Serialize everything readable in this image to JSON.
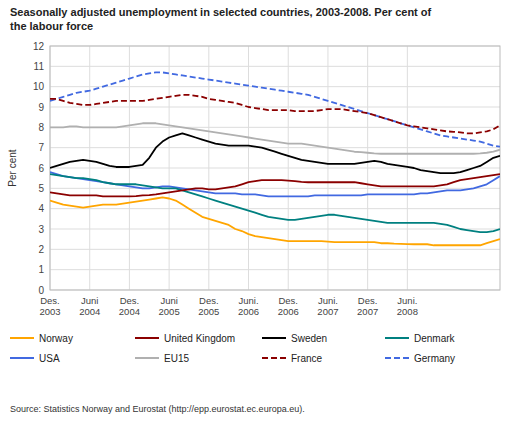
{
  "chart_data": {
    "type": "line",
    "title": "Seasonally adjusted unemployment in selected countries, 2003-2008. Per cent of\nthe labour force",
    "ylabel": "Per cent",
    "source": "Source: Statistics Norway and Eurostat (http://epp.eurostat.ec.europa.eu).",
    "categories": [
      "Des.\n2003",
      null,
      null,
      null,
      null,
      null,
      "Juni\n2004",
      null,
      null,
      null,
      null,
      null,
      "Des.\n2004",
      null,
      null,
      null,
      null,
      null,
      "Juni\n2005",
      null,
      null,
      null,
      null,
      null,
      "Des.\n2005",
      null,
      null,
      null,
      null,
      null,
      "Juni.\n2006",
      null,
      null,
      null,
      null,
      null,
      "Des.\n2006",
      null,
      null,
      null,
      null,
      null,
      "Juni.\n2007",
      null,
      null,
      null,
      null,
      null,
      "Des.\n2007",
      null,
      null,
      null,
      null,
      null,
      "Juni.\n2008",
      null,
      null,
      null,
      null,
      null,
      null,
      null,
      null,
      null,
      null,
      null,
      null,
      null,
      null
    ],
    "ylim": [
      0,
      12
    ],
    "yticks": [
      0,
      1,
      2,
      3,
      4,
      5,
      6,
      7,
      8,
      9,
      10,
      11,
      12
    ],
    "grid": true,
    "legend": "bottom",
    "series": [
      {
        "name": "Norway",
        "color": "#FFA500",
        "line_style": "solid",
        "values": [
          4.4,
          4.3,
          4.2,
          4.15,
          4.1,
          4.05,
          4.1,
          4.15,
          4.2,
          4.2,
          4.2,
          4.25,
          4.3,
          4.35,
          4.4,
          4.45,
          4.5,
          4.55,
          4.5,
          4.4,
          4.2,
          4.0,
          3.8,
          3.6,
          3.5,
          3.4,
          3.3,
          3.2,
          3.0,
          2.9,
          2.75,
          2.65,
          2.6,
          2.55,
          2.5,
          2.45,
          2.4,
          2.4,
          2.4,
          2.4,
          2.4,
          2.4,
          2.38,
          2.35,
          2.35,
          2.35,
          2.35,
          2.35,
          2.35,
          2.35,
          2.3,
          2.3,
          2.28,
          2.27,
          2.26,
          2.25,
          2.25,
          2.25,
          2.2,
          2.2,
          2.2,
          2.2,
          2.2,
          2.2,
          2.2,
          2.2,
          2.3,
          2.4,
          2.5
        ]
      },
      {
        "name": "United Kingdom",
        "color": "#8B0000",
        "line_style": "solid",
        "values": [
          4.8,
          4.75,
          4.7,
          4.65,
          4.65,
          4.65,
          4.65,
          4.65,
          4.6,
          4.6,
          4.6,
          4.6,
          4.6,
          4.62,
          4.65,
          4.67,
          4.7,
          4.75,
          4.8,
          4.85,
          4.9,
          4.95,
          5.0,
          5.0,
          4.95,
          4.95,
          5.0,
          5.05,
          5.1,
          5.2,
          5.3,
          5.35,
          5.4,
          5.4,
          5.4,
          5.4,
          5.38,
          5.35,
          5.32,
          5.3,
          5.3,
          5.3,
          5.3,
          5.3,
          5.3,
          5.3,
          5.3,
          5.25,
          5.2,
          5.15,
          5.1,
          5.1,
          5.1,
          5.1,
          5.1,
          5.1,
          5.1,
          5.1,
          5.1,
          5.15,
          5.2,
          5.3,
          5.4,
          5.45,
          5.5,
          5.55,
          5.6,
          5.65,
          5.7
        ]
      },
      {
        "name": "Sweden",
        "color": "#000000",
        "line_style": "solid",
        "values": [
          6.0,
          6.1,
          6.2,
          6.3,
          6.35,
          6.4,
          6.35,
          6.3,
          6.2,
          6.1,
          6.05,
          6.05,
          6.05,
          6.1,
          6.15,
          6.5,
          7.0,
          7.3,
          7.5,
          7.6,
          7.7,
          7.6,
          7.5,
          7.4,
          7.3,
          7.2,
          7.15,
          7.1,
          7.1,
          7.1,
          7.1,
          7.05,
          7.0,
          6.9,
          6.8,
          6.7,
          6.6,
          6.5,
          6.4,
          6.35,
          6.3,
          6.25,
          6.2,
          6.2,
          6.2,
          6.2,
          6.2,
          6.25,
          6.3,
          6.35,
          6.3,
          6.2,
          6.15,
          6.1,
          6.05,
          6.0,
          5.9,
          5.85,
          5.8,
          5.75,
          5.75,
          5.75,
          5.8,
          5.9,
          6.0,
          6.1,
          6.3,
          6.5,
          6.6
        ]
      },
      {
        "name": "Denmark",
        "color": "#008080",
        "line_style": "solid",
        "values": [
          5.7,
          5.65,
          5.6,
          5.55,
          5.5,
          5.5,
          5.45,
          5.4,
          5.3,
          5.25,
          5.2,
          5.2,
          5.2,
          5.2,
          5.15,
          5.1,
          5.05,
          5.0,
          5.0,
          5.0,
          4.9,
          4.8,
          4.7,
          4.6,
          4.5,
          4.4,
          4.3,
          4.2,
          4.1,
          4.0,
          3.9,
          3.8,
          3.7,
          3.6,
          3.55,
          3.5,
          3.45,
          3.45,
          3.5,
          3.55,
          3.6,
          3.65,
          3.7,
          3.7,
          3.65,
          3.6,
          3.55,
          3.5,
          3.45,
          3.4,
          3.35,
          3.3,
          3.3,
          3.3,
          3.3,
          3.3,
          3.3,
          3.3,
          3.3,
          3.25,
          3.2,
          3.1,
          3.0,
          2.95,
          2.9,
          2.85,
          2.85,
          2.9,
          3.0
        ]
      },
      {
        "name": "USA",
        "color": "#4169E1",
        "line_style": "solid",
        "values": [
          5.8,
          5.7,
          5.6,
          5.55,
          5.5,
          5.45,
          5.4,
          5.35,
          5.3,
          5.25,
          5.2,
          5.15,
          5.1,
          5.05,
          5.0,
          5.0,
          5.05,
          5.1,
          5.1,
          5.05,
          5.0,
          4.95,
          4.9,
          4.85,
          4.8,
          4.75,
          4.75,
          4.75,
          4.75,
          4.7,
          4.7,
          4.7,
          4.65,
          4.6,
          4.6,
          4.6,
          4.6,
          4.6,
          4.6,
          4.6,
          4.65,
          4.65,
          4.65,
          4.65,
          4.65,
          4.65,
          4.65,
          4.65,
          4.7,
          4.7,
          4.7,
          4.7,
          4.7,
          4.7,
          4.7,
          4.7,
          4.75,
          4.75,
          4.8,
          4.85,
          4.9,
          4.9,
          4.9,
          4.95,
          5.0,
          5.1,
          5.2,
          5.4,
          5.6
        ]
      },
      {
        "name": "EU15",
        "color": "#B0B0B0",
        "line_style": "solid",
        "values": [
          8.0,
          8.0,
          8.0,
          8.05,
          8.05,
          8.0,
          8.0,
          8.0,
          8.0,
          8.0,
          8.0,
          8.05,
          8.1,
          8.15,
          8.2,
          8.2,
          8.2,
          8.15,
          8.1,
          8.05,
          8.0,
          7.95,
          7.9,
          7.85,
          7.8,
          7.75,
          7.7,
          7.65,
          7.6,
          7.55,
          7.5,
          7.45,
          7.4,
          7.35,
          7.3,
          7.25,
          7.2,
          7.2,
          7.2,
          7.15,
          7.1,
          7.05,
          7.0,
          6.95,
          6.9,
          6.85,
          6.8,
          6.78,
          6.75,
          6.72,
          6.7,
          6.7,
          6.7,
          6.7,
          6.7,
          6.7,
          6.7,
          6.7,
          6.7,
          6.7,
          6.7,
          6.7,
          6.7,
          6.7,
          6.7,
          6.72,
          6.75,
          6.8,
          6.9
        ]
      },
      {
        "name": "France",
        "color": "#8B0000",
        "line_style": "dashed",
        "values": [
          9.4,
          9.4,
          9.3,
          9.2,
          9.15,
          9.1,
          9.1,
          9.15,
          9.2,
          9.25,
          9.3,
          9.3,
          9.3,
          9.3,
          9.3,
          9.35,
          9.4,
          9.45,
          9.5,
          9.55,
          9.6,
          9.6,
          9.55,
          9.5,
          9.4,
          9.35,
          9.3,
          9.25,
          9.2,
          9.1,
          9.0,
          8.95,
          8.9,
          8.85,
          8.85,
          8.85,
          8.85,
          8.8,
          8.8,
          8.8,
          8.8,
          8.85,
          8.9,
          8.9,
          8.9,
          8.85,
          8.8,
          8.75,
          8.7,
          8.6,
          8.5,
          8.4,
          8.3,
          8.2,
          8.1,
          8.05,
          8.0,
          7.95,
          7.9,
          7.85,
          7.8,
          7.78,
          7.75,
          7.7,
          7.7,
          7.75,
          7.8,
          7.9,
          8.1
        ]
      },
      {
        "name": "Germany",
        "color": "#4169E1",
        "line_style": "dashed",
        "values": [
          9.3,
          9.4,
          9.5,
          9.6,
          9.7,
          9.75,
          9.8,
          9.9,
          10.0,
          10.1,
          10.2,
          10.3,
          10.4,
          10.5,
          10.6,
          10.65,
          10.7,
          10.7,
          10.65,
          10.6,
          10.55,
          10.5,
          10.45,
          10.4,
          10.35,
          10.3,
          10.25,
          10.2,
          10.15,
          10.1,
          10.05,
          10.0,
          9.95,
          9.9,
          9.85,
          9.8,
          9.75,
          9.7,
          9.65,
          9.6,
          9.5,
          9.4,
          9.3,
          9.2,
          9.1,
          9.0,
          8.9,
          8.8,
          8.7,
          8.6,
          8.5,
          8.4,
          8.3,
          8.2,
          8.1,
          8.0,
          7.9,
          7.8,
          7.7,
          7.6,
          7.55,
          7.5,
          7.45,
          7.4,
          7.35,
          7.3,
          7.2,
          7.1,
          7.05
        ]
      }
    ]
  }
}
